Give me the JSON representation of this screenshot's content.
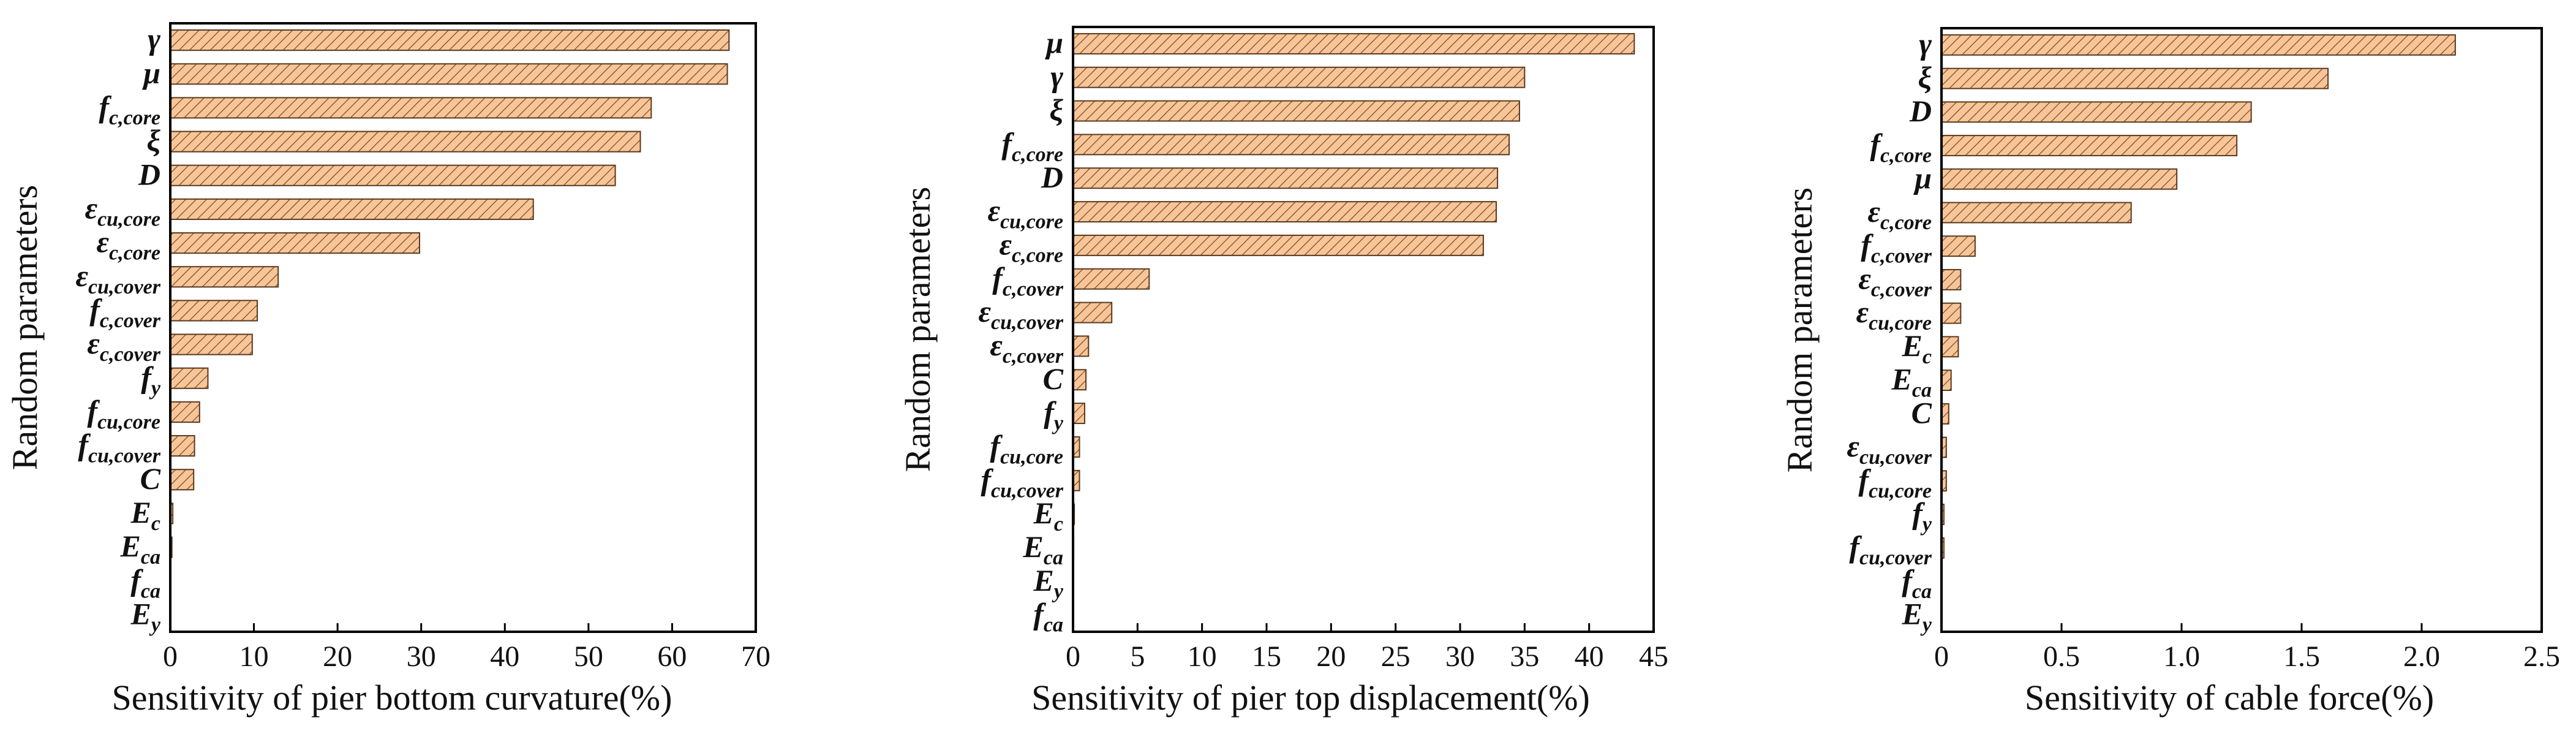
{
  "colors": {
    "bar_fill": "#f7c598",
    "bar_hatch": "#7a4a24",
    "bar_stroke": "#5a3a1e",
    "axis": "#000000"
  },
  "chart_data": [
    {
      "type": "bar",
      "orientation": "horizontal",
      "xlabel": "Sensitivity of pier bottom curvature(%)",
      "ylabel": "Random parameters",
      "xlim": [
        0,
        70
      ],
      "xticks": [
        0,
        10,
        20,
        30,
        40,
        50,
        60,
        70
      ],
      "xtick_labels": [
        "0",
        "10",
        "20",
        "30",
        "40",
        "50",
        "60",
        "70"
      ],
      "categories": [
        {
          "base": "γ",
          "sub": ""
        },
        {
          "base": "μ",
          "sub": ""
        },
        {
          "base": "f",
          "sub": "c,core"
        },
        {
          "base": "ξ",
          "sub": ""
        },
        {
          "base": "D",
          "sub": ""
        },
        {
          "base": "ε",
          "sub": "cu,core"
        },
        {
          "base": "ε",
          "sub": "c,core"
        },
        {
          "base": "ε",
          "sub": "cu,cover"
        },
        {
          "base": "f",
          "sub": "c,cover"
        },
        {
          "base": "ε",
          "sub": "c,cover"
        },
        {
          "base": "f",
          "sub": "y"
        },
        {
          "base": "f",
          "sub": "cu,core"
        },
        {
          "base": "f",
          "sub": "cu,cover"
        },
        {
          "base": "C",
          "sub": ""
        },
        {
          "base": "E",
          "sub": "c"
        },
        {
          "base": "E",
          "sub": "ca"
        },
        {
          "base": "f",
          "sub": "ca"
        },
        {
          "base": "E",
          "sub": "y"
        }
      ],
      "values": [
        66.8,
        66.6,
        57.5,
        56.2,
        53.2,
        43.4,
        29.8,
        12.9,
        10.4,
        9.8,
        4.5,
        3.5,
        2.9,
        2.8,
        0.3,
        0.2,
        0.0,
        0.0
      ]
    },
    {
      "type": "bar",
      "orientation": "horizontal",
      "xlabel": "Sensitivity of pier top displacement(%)",
      "ylabel": "Random parameters",
      "xlim": [
        0,
        45
      ],
      "xticks": [
        0,
        5,
        10,
        15,
        20,
        25,
        30,
        35,
        40,
        45
      ],
      "xtick_labels": [
        "0",
        "5",
        "10",
        "15",
        "20",
        "25",
        "30",
        "35",
        "40",
        "45"
      ],
      "categories": [
        {
          "base": "μ",
          "sub": ""
        },
        {
          "base": "γ",
          "sub": ""
        },
        {
          "base": "ξ",
          "sub": ""
        },
        {
          "base": "f",
          "sub": "c,core"
        },
        {
          "base": "D",
          "sub": ""
        },
        {
          "base": "ε",
          "sub": "cu,core"
        },
        {
          "base": "ε",
          "sub": "c,core"
        },
        {
          "base": "f",
          "sub": "c,cover"
        },
        {
          "base": "ε",
          "sub": "cu,cover"
        },
        {
          "base": "ε",
          "sub": "c,cover"
        },
        {
          "base": "C",
          "sub": ""
        },
        {
          "base": "f",
          "sub": "y"
        },
        {
          "base": "f",
          "sub": "cu,core"
        },
        {
          "base": "f",
          "sub": "cu,cover"
        },
        {
          "base": "E",
          "sub": "c"
        },
        {
          "base": "E",
          "sub": "ca"
        },
        {
          "base": "E",
          "sub": "y"
        },
        {
          "base": "f",
          "sub": "ca"
        }
      ],
      "values": [
        43.5,
        35.0,
        34.6,
        33.8,
        32.9,
        32.8,
        31.8,
        5.9,
        3.0,
        1.2,
        1.0,
        0.9,
        0.5,
        0.5,
        0.1,
        0.05,
        0.0,
        0.0
      ]
    },
    {
      "type": "bar",
      "orientation": "horizontal",
      "xlabel": "Sensitivity of cable force(%)",
      "ylabel": "Random parameters",
      "xlim": [
        0,
        2.5
      ],
      "xticks": [
        0,
        0.5,
        1.0,
        1.5,
        2.0,
        2.5
      ],
      "xtick_labels": [
        "0",
        "0.5",
        "1.0",
        "1.5",
        "2.0",
        "2.5"
      ],
      "categories": [
        {
          "base": "γ",
          "sub": ""
        },
        {
          "base": "ξ",
          "sub": ""
        },
        {
          "base": "D",
          "sub": ""
        },
        {
          "base": "f",
          "sub": "c,core"
        },
        {
          "base": "μ",
          "sub": ""
        },
        {
          "base": "ε",
          "sub": "c,core"
        },
        {
          "base": "f",
          "sub": "c,cover"
        },
        {
          "base": "ε",
          "sub": "c,cover"
        },
        {
          "base": "ε",
          "sub": "cu,core"
        },
        {
          "base": "E",
          "sub": "c"
        },
        {
          "base": "E",
          "sub": "ca"
        },
        {
          "base": "C",
          "sub": ""
        },
        {
          "base": "ε",
          "sub": "cu,cover"
        },
        {
          "base": "f",
          "sub": "cu,core"
        },
        {
          "base": "f",
          "sub": "y"
        },
        {
          "base": "f",
          "sub": "cu,cover"
        },
        {
          "base": "f",
          "sub": "ca"
        },
        {
          "base": "E",
          "sub": "y"
        }
      ],
      "values": [
        2.14,
        1.61,
        1.29,
        1.23,
        0.98,
        0.79,
        0.14,
        0.08,
        0.08,
        0.07,
        0.04,
        0.03,
        0.02,
        0.02,
        0.01,
        0.01,
        0.0,
        0.0
      ]
    }
  ]
}
